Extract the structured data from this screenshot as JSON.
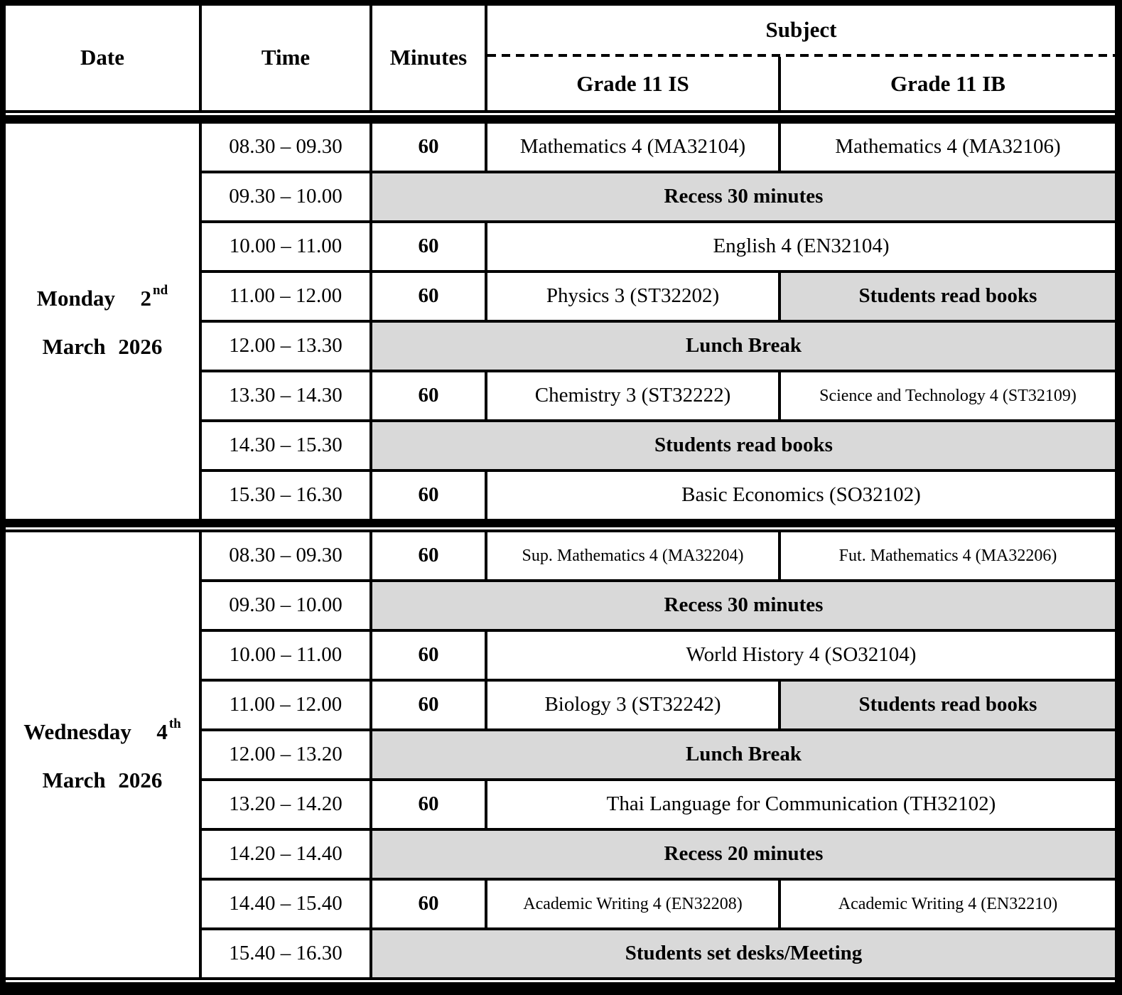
{
  "header": {
    "date": "Date",
    "time": "Time",
    "minutes": "Minutes",
    "subject": "Subject",
    "grade_is": "Grade 11 IS",
    "grade_ib": "Grade 11 IB"
  },
  "colors": {
    "highlight": "#d9d9d9",
    "border": "#000000",
    "background": "#ffffff"
  },
  "days": [
    {
      "name": "Monday",
      "day": "2",
      "ordinal": "nd",
      "month_year": "March  2026",
      "rows": [
        {
          "time": "08.30 – 09.30",
          "minutes": "60",
          "is": "Mathematics 4 (MA32104)",
          "ib": "Mathematics 4 (MA32106)"
        },
        {
          "time": "09.30 – 10.00",
          "span": "Recess 30 minutes"
        },
        {
          "time": "10.00 – 11.00",
          "minutes": "60",
          "span": "English 4 (EN32104)"
        },
        {
          "time": "11.00 – 12.00",
          "minutes": "60",
          "is": "Physics 3 (ST32202)",
          "ib": "Students read books"
        },
        {
          "time": "12.00 – 13.30",
          "span": "Lunch Break"
        },
        {
          "time": "13.30 – 14.30",
          "minutes": "60",
          "is": "Chemistry 3 (ST32222)",
          "ib": "Science and Technology 4 (ST32109)"
        },
        {
          "time": "14.30 – 15.30",
          "span": "Students read books"
        },
        {
          "time": "15.30 – 16.30",
          "minutes": "60",
          "span": "Basic Economics (SO32102)"
        }
      ]
    },
    {
      "name": "Wednesday",
      "day": "4",
      "ordinal": "th",
      "month_year": "March  2026",
      "rows": [
        {
          "time": "08.30 – 09.30",
          "minutes": "60",
          "is": "Sup. Mathematics 4 (MA32204)",
          "ib": "Fut. Mathematics 4 (MA32206)"
        },
        {
          "time": "09.30 – 10.00",
          "span": "Recess 30 minutes"
        },
        {
          "time": "10.00 – 11.00",
          "minutes": "60",
          "span": "World History 4 (SO32104)"
        },
        {
          "time": "11.00 – 12.00",
          "minutes": "60",
          "is": "Biology 3 (ST32242)",
          "ib": "Students read books"
        },
        {
          "time": "12.00 – 13.20",
          "span": "Lunch Break"
        },
        {
          "time": "13.20 – 14.20",
          "minutes": "60",
          "span": "Thai Language for Communication (TH32102)"
        },
        {
          "time": "14.20 – 14.40",
          "span": "Recess 20 minutes"
        },
        {
          "time": "14.40 – 15.40",
          "minutes": "60",
          "is": "Academic Writing 4 (EN32208)",
          "ib": "Academic Writing 4 (EN32210)"
        },
        {
          "time": "15.40 – 16.30",
          "span": "Students set desks/Meeting"
        }
      ]
    }
  ]
}
